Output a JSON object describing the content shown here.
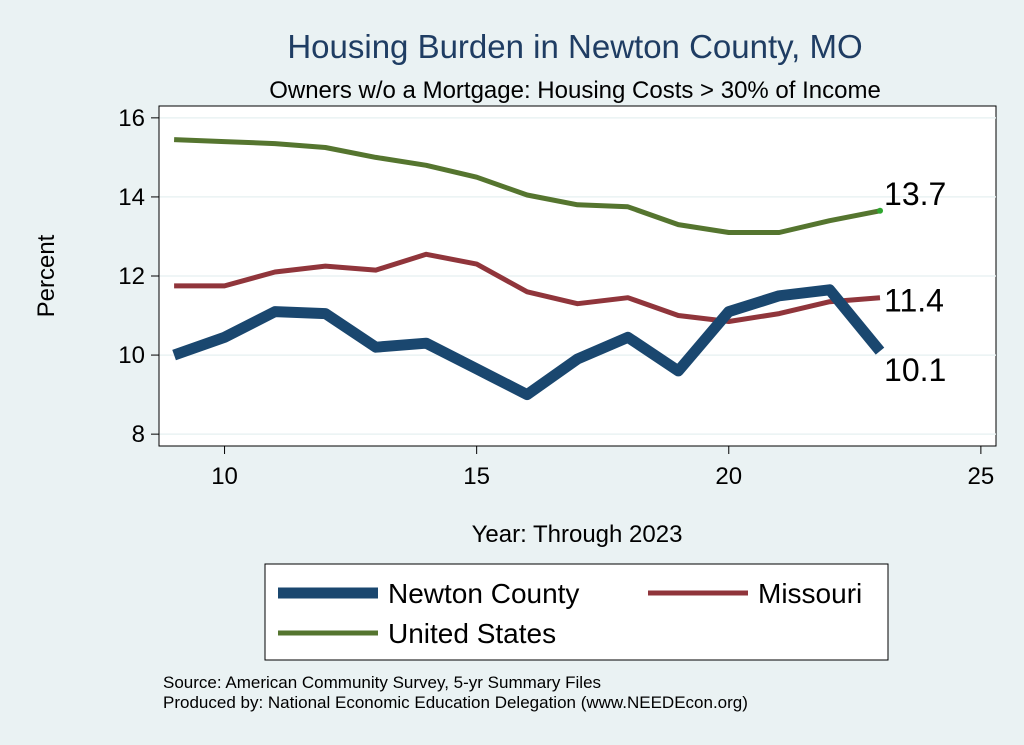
{
  "chart_data": {
    "type": "line",
    "title": "Housing Burden in Newton County, MO",
    "subtitle": "Owners w/o a Mortgage: Housing Costs > 30% of Income",
    "xlabel": "Year: Through 2023",
    "ylabel": "Percent",
    "xlim": [
      8.7,
      25.3
    ],
    "ylim": [
      7.7,
      16.3
    ],
    "xticks": [
      10,
      15,
      20,
      25
    ],
    "yticks": [
      8,
      10,
      12,
      14,
      16
    ],
    "grid": true,
    "x": [
      9,
      10,
      11,
      12,
      13,
      14,
      15,
      16,
      17,
      18,
      19,
      20,
      21,
      22,
      23
    ],
    "series": [
      {
        "name": "Newton County",
        "color": "#1a476f",
        "width": 11,
        "values": [
          10.0,
          10.45,
          11.1,
          11.05,
          10.2,
          10.3,
          9.65,
          9.0,
          9.9,
          10.45,
          9.6,
          11.1,
          11.5,
          11.65,
          10.1
        ],
        "end_label": "10.1"
      },
      {
        "name": "Missouri",
        "color": "#90353b",
        "width": 5,
        "values": [
          11.75,
          11.75,
          12.1,
          12.25,
          12.15,
          12.55,
          12.3,
          11.6,
          11.3,
          11.45,
          11.0,
          10.85,
          11.05,
          11.35,
          11.45
        ],
        "end_label": "11.4"
      },
      {
        "name": "United States",
        "color": "#55752f",
        "width": 5,
        "values": [
          15.45,
          15.4,
          15.35,
          15.25,
          15.0,
          14.8,
          14.5,
          14.05,
          13.8,
          13.75,
          13.3,
          13.1,
          13.1,
          13.4,
          13.65
        ],
        "end_label": "13.7"
      }
    ],
    "legend": {
      "position": "bottom",
      "entries": [
        "Newton County",
        "Missouri",
        "United States"
      ]
    },
    "notes": [
      "Source: American Community Survey, 5-yr Summary Files",
      "Produced by: National Economic Education Delegation (www.NEEDEcon.org)"
    ]
  }
}
